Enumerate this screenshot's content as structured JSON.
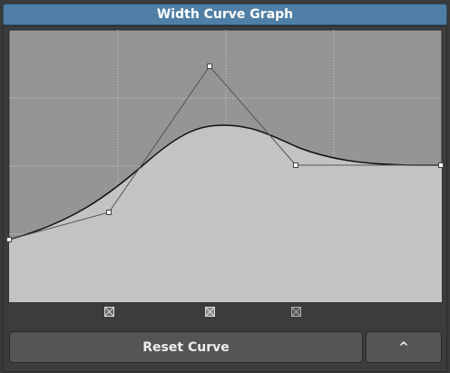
{
  "header": {
    "title": "Width Curve Graph"
  },
  "buttons": {
    "reset": "Reset Curve",
    "collapse": "^"
  }
}
